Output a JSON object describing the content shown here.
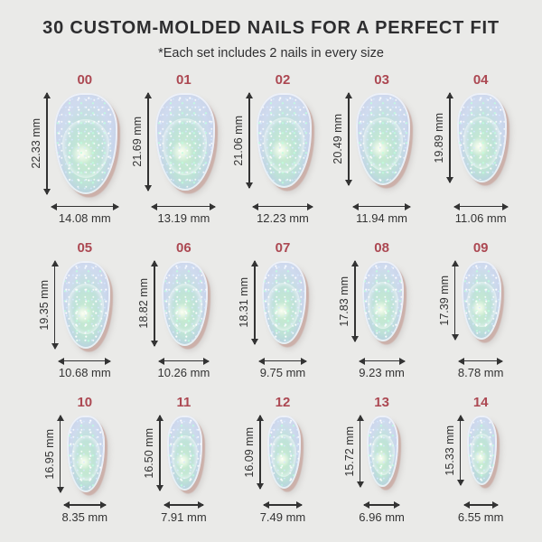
{
  "header": {
    "title": "30 CUSTOM-MOLDED NAILS FOR A PERFECT FIT",
    "subtitle": "*Each set includes 2 nails in every size"
  },
  "unit": "mm",
  "colors": {
    "background": "#eaeae8",
    "title_text": "#2d2d2f",
    "size_number_text": "#ac4852",
    "measurement_text": "#333333",
    "nail_shadow": "#c49a8f",
    "nail_rim": "#ccd3e8",
    "nail_center": "#cdeccf"
  },
  "rows": [
    [
      {
        "id": "00",
        "height_mm": 22.33,
        "width_mm": 14.08,
        "height_label": "22.33 mm",
        "width_label": "14.08 mm"
      },
      {
        "id": "01",
        "height_mm": 21.69,
        "width_mm": 13.19,
        "height_label": "21.69 mm",
        "width_label": "13.19 mm"
      },
      {
        "id": "02",
        "height_mm": 21.06,
        "width_mm": 12.23,
        "height_label": "21.06 mm",
        "width_label": "12.23 mm"
      },
      {
        "id": "03",
        "height_mm": 20.49,
        "width_mm": 11.94,
        "height_label": "20.49 mm",
        "width_label": "11.94 mm"
      },
      {
        "id": "04",
        "height_mm": 19.89,
        "width_mm": 11.06,
        "height_label": "19.89 mm",
        "width_label": "11.06 mm"
      }
    ],
    [
      {
        "id": "05",
        "height_mm": 19.35,
        "width_mm": 10.68,
        "height_label": "19.35 mm",
        "width_label": "10.68 mm"
      },
      {
        "id": "06",
        "height_mm": 18.82,
        "width_mm": 10.26,
        "height_label": "18.82 mm",
        "width_label": "10.26 mm"
      },
      {
        "id": "07",
        "height_mm": 18.31,
        "width_mm": 9.75,
        "height_label": "18.31 mm",
        "width_label": "9.75 mm"
      },
      {
        "id": "08",
        "height_mm": 17.83,
        "width_mm": 9.23,
        "height_label": "17.83 mm",
        "width_label": "9.23 mm"
      },
      {
        "id": "09",
        "height_mm": 17.39,
        "width_mm": 8.78,
        "height_label": "17.39 mm",
        "width_label": "8.78 mm"
      }
    ],
    [
      {
        "id": "10",
        "height_mm": 16.95,
        "width_mm": 8.35,
        "height_label": "16.95 mm",
        "width_label": "8.35 mm"
      },
      {
        "id": "11",
        "height_mm": 16.5,
        "width_mm": 7.91,
        "height_label": "16.50 mm",
        "width_label": "7.91 mm"
      },
      {
        "id": "12",
        "height_mm": 16.09,
        "width_mm": 7.49,
        "height_label": "16.09 mm",
        "width_label": "7.49 mm"
      },
      {
        "id": "13",
        "height_mm": 15.72,
        "width_mm": 6.96,
        "height_label": "15.72 mm",
        "width_label": "6.96 mm"
      },
      {
        "id": "14",
        "height_mm": 15.33,
        "width_mm": 6.55,
        "height_label": "15.33 mm",
        "width_label": "6.55 mm"
      }
    ]
  ]
}
